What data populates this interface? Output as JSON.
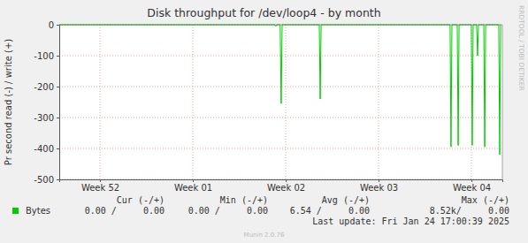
{
  "chart_data": {
    "type": "line",
    "title": "Disk throughput for /dev/loop4 - by month",
    "y_label": "Pr second read (-) / write (+)",
    "watermark": "RRDTOOL / TOBI OETIKER",
    "x": [
      0,
      16.25,
      16.33,
      16.4,
      16.65,
      16.73,
      16.8,
      19.6,
      19.67,
      19.74,
      29.46,
      29.53,
      29.6,
      30.0,
      30.07,
      30.14,
      31.06,
      31.13,
      31.2,
      31.46,
      31.53,
      31.6,
      32.0,
      32.07,
      32.14,
      33.13,
      33.2,
      33.27
    ],
    "series": [
      {
        "name": "Bytes",
        "color": "#00cc00",
        "values": [
          0,
          0,
          -5,
          0,
          0,
          -255,
          0,
          0,
          -240,
          0,
          0,
          -395,
          0,
          0,
          -390,
          0,
          0,
          -390,
          0,
          0,
          -100,
          0,
          0,
          -395,
          0,
          0,
          -420,
          0
        ]
      }
    ],
    "xlim": [
      0,
      33.4
    ],
    "xticks": [
      {
        "value": 3.07,
        "label": "Week 52"
      },
      {
        "value": 10.07,
        "label": "Week 01"
      },
      {
        "value": 17.07,
        "label": "Week 02"
      },
      {
        "value": 24.07,
        "label": "Week 03"
      },
      {
        "value": 31.07,
        "label": "Week 04"
      }
    ],
    "ylim": [
      -500,
      0
    ],
    "yticks": [
      -500,
      -400,
      -300,
      -200,
      -100,
      0
    ],
    "grid": true,
    "legend_table": {
      "columns": [
        "Cur (-/+)",
        "Min (-/+)",
        "Avg (-/+)",
        "Max (-/+)"
      ],
      "cells": [
        "0.00 /     0.00",
        "0.00 /     0.00",
        "6.54 /     0.00",
        "8.52k/     0.00"
      ]
    },
    "footer": "Last update: Fri Jan 24 17:00:39 2025",
    "credit": "Munin 2.0.76"
  }
}
